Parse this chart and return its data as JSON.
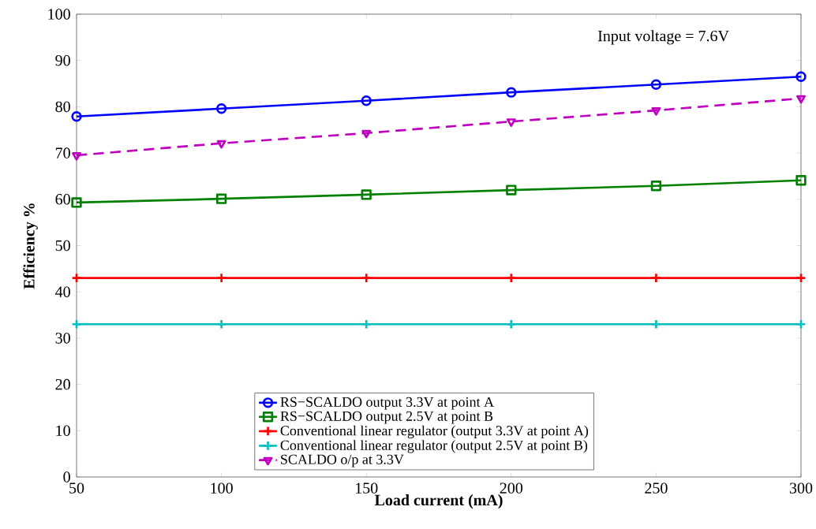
{
  "chart_data": {
    "type": "line",
    "xlabel": "Load current (mA)",
    "ylabel": "Efficiency %",
    "annotations": [
      "Input voltage = 7.6V"
    ],
    "x": [
      50,
      100,
      150,
      200,
      250,
      300
    ],
    "series": [
      {
        "name": "RS−SCALDO output 3.3V at point A",
        "color": "#0000ff",
        "marker": "circle",
        "line_style": "solid",
        "values": [
          77.9,
          79.6,
          81.3,
          83.1,
          84.8,
          86.5
        ]
      },
      {
        "name": "RS−SCALDO output 2.5V at point B",
        "color": "#008000",
        "marker": "square",
        "line_style": "solid",
        "values": [
          59.3,
          60.1,
          61.0,
          62.0,
          62.9,
          64.1
        ]
      },
      {
        "name": "Conventional linear regulator (output 3.3V at point A)",
        "color": "#ff0000",
        "marker": "cross",
        "line_style": "solid",
        "values": [
          43,
          43,
          43,
          43,
          43,
          43
        ]
      },
      {
        "name": "Conventional linear regulator (output 2.5V at point B)",
        "color": "#00bfbf",
        "marker": "cross",
        "line_style": "solid",
        "values": [
          33,
          33,
          33,
          33,
          33,
          33
        ]
      },
      {
        "name": "SCALDO o/p at 3.3V",
        "color": "#bf00bf",
        "marker": "triangle",
        "line_style": "dashed",
        "values": [
          69.5,
          72.1,
          74.3,
          76.8,
          79.2,
          81.8
        ]
      }
    ],
    "xlim": [
      50,
      300
    ],
    "xticks": [
      50,
      100,
      150,
      200,
      250,
      300
    ],
    "ylim": [
      0,
      100
    ],
    "yticks": [
      0,
      10,
      20,
      30,
      40,
      50,
      60,
      70,
      80,
      90,
      100
    ],
    "grid": false,
    "legend": "bottom"
  }
}
